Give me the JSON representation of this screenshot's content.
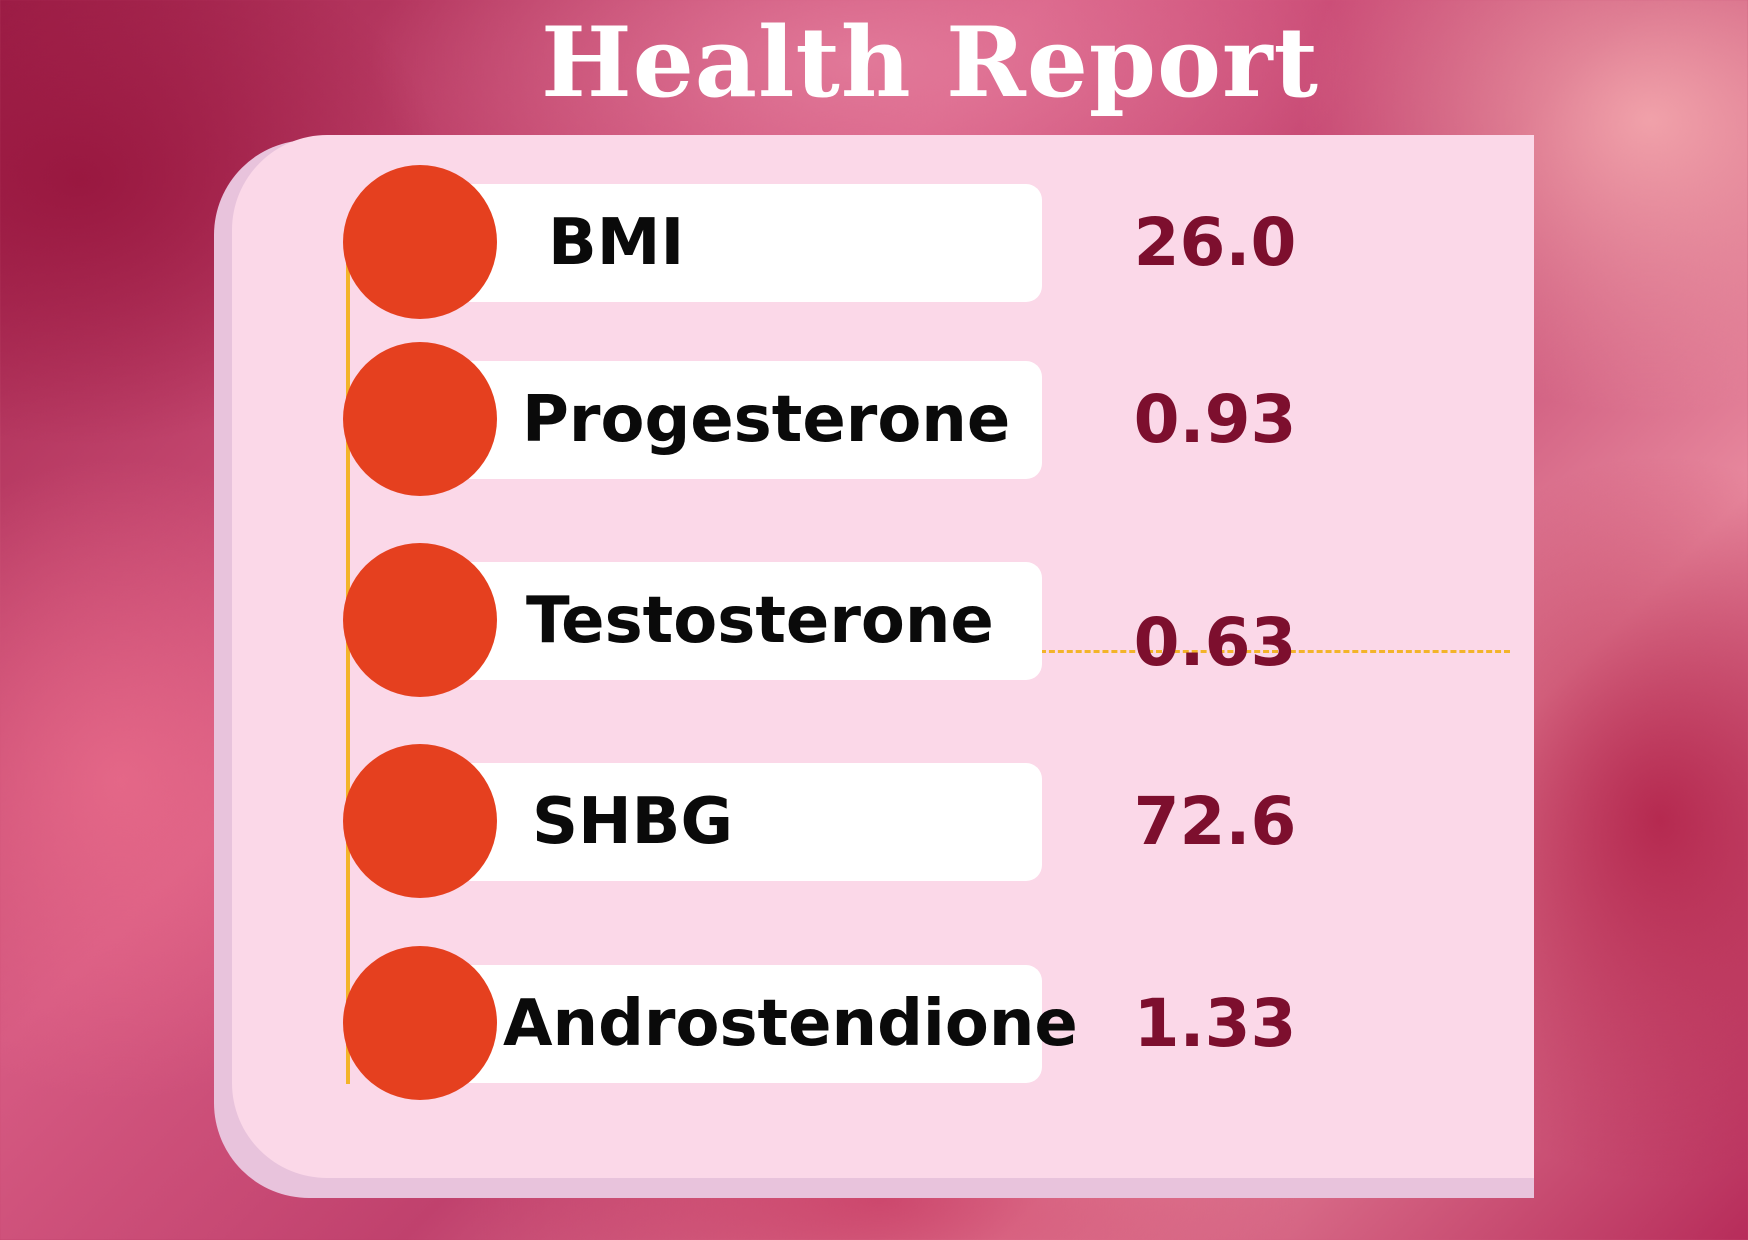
{
  "title": "Health Report",
  "colors": {
    "card": "#fbd8e8",
    "dot": "#e5401f",
    "value_text": "#7d0f2e",
    "timeline": "#f3b429"
  },
  "metrics": [
    {
      "label": "BMI",
      "value": "26.0"
    },
    {
      "label": "Progesterone",
      "value": "0.93"
    },
    {
      "label": "Testosterone",
      "value": "0.63"
    },
    {
      "label": "SHBG",
      "value": "72.6"
    },
    {
      "label": "Androstendione",
      "value": "1.33"
    }
  ]
}
